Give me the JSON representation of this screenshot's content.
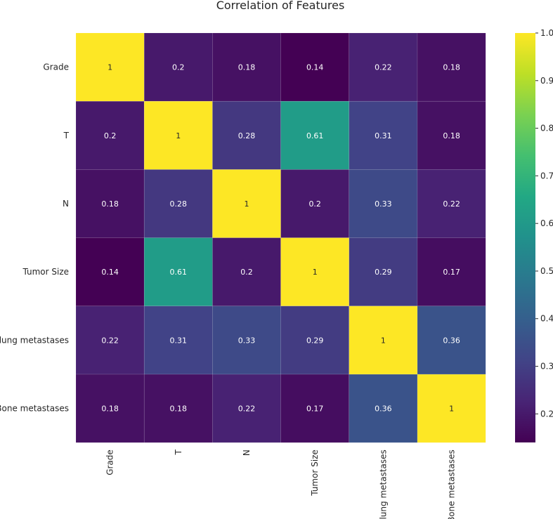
{
  "chart_data": {
    "type": "heatmap",
    "title": "Correlation of Features",
    "rows": [
      "Grade",
      "T",
      "N",
      "Tumor Size",
      "lung metastases",
      "Bone metastases"
    ],
    "columns": [
      "Grade",
      "T",
      "N",
      "Tumor Size",
      "lung metastases",
      "Bone metastases"
    ],
    "values": [
      [
        1,
        0.2,
        0.18,
        0.14,
        0.22,
        0.18
      ],
      [
        0.2,
        1,
        0.28,
        0.61,
        0.31,
        0.18
      ],
      [
        0.18,
        0.28,
        1,
        0.2,
        0.33,
        0.22
      ],
      [
        0.14,
        0.61,
        0.2,
        1,
        0.29,
        0.17
      ],
      [
        0.22,
        0.31,
        0.33,
        0.29,
        1,
        0.36
      ],
      [
        0.18,
        0.18,
        0.22,
        0.17,
        0.36,
        1
      ]
    ],
    "annotations": [
      [
        "1",
        "0.2",
        "0.18",
        "0.14",
        "0.22",
        "0.18"
      ],
      [
        "0.2",
        "1",
        "0.28",
        "0.61",
        "0.31",
        "0.18"
      ],
      [
        "0.18",
        "0.28",
        "1",
        "0.2",
        "0.33",
        "0.22"
      ],
      [
        "0.14",
        "0.61",
        "0.2",
        "1",
        "0.29",
        "0.17"
      ],
      [
        "0.22",
        "0.31",
        "0.33",
        "0.29",
        "1",
        "0.36"
      ],
      [
        "0.18",
        "0.18",
        "0.22",
        "0.17",
        "0.36",
        "1"
      ]
    ],
    "colormap": "viridis",
    "colorbar": {
      "range": [
        0.14,
        1.0
      ],
      "ticks": [
        0.2,
        0.3,
        0.4,
        0.5,
        0.6,
        0.7,
        0.8,
        0.9,
        1.0
      ],
      "tick_labels": [
        "0.2",
        "0.3",
        "0.4",
        "0.5",
        "0.6",
        "0.7",
        "0.8",
        "0.9",
        "1.0"
      ]
    },
    "xlabel": "",
    "ylabel": ""
  }
}
